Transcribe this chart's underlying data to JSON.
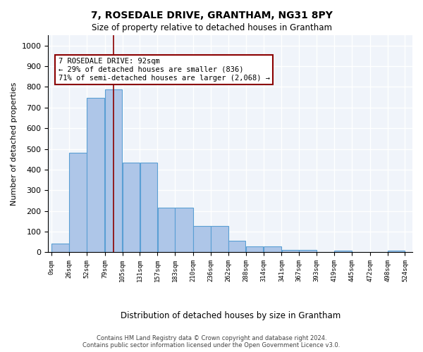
{
  "title": "7, ROSEDALE DRIVE, GRANTHAM, NG31 8PY",
  "subtitle": "Size of property relative to detached houses in Grantham",
  "xlabel": "Distribution of detached houses by size in Grantham",
  "ylabel": "Number of detached properties",
  "bar_color": "#aec6e8",
  "bar_edge_color": "#5a9fd4",
  "background_color": "#f0f4fa",
  "grid_color": "#ffffff",
  "property_line_x": 92,
  "property_sqm": 92,
  "annotation_text": "7 ROSEDALE DRIVE: 92sqm\n← 29% of detached houses are smaller (836)\n71% of semi-detached houses are larger (2,068) →",
  "bin_edges": [
    0,
    26,
    52,
    79,
    105,
    131,
    157,
    183,
    210,
    236,
    262,
    288,
    314,
    341,
    367,
    393,
    419,
    445,
    472,
    498,
    524
  ],
  "bin_labels": [
    "0sqm",
    "26sqm",
    "52sqm",
    "79sqm",
    "105sqm",
    "131sqm",
    "157sqm",
    "183sqm",
    "210sqm",
    "236sqm",
    "262sqm",
    "288sqm",
    "314sqm",
    "341sqm",
    "367sqm",
    "393sqm",
    "419sqm",
    "445sqm",
    "472sqm",
    "498sqm",
    "524sqm"
  ],
  "counts": [
    42,
    482,
    748,
    787,
    433,
    433,
    215,
    215,
    127,
    127,
    55,
    30,
    30,
    12,
    12,
    0,
    8,
    0,
    0,
    8,
    0
  ],
  "ylim": [
    0,
    1050
  ],
  "footer": "Contains HM Land Registry data © Crown copyright and database right 2024.\nContains public sector information licensed under the Open Government Licence v3.0."
}
